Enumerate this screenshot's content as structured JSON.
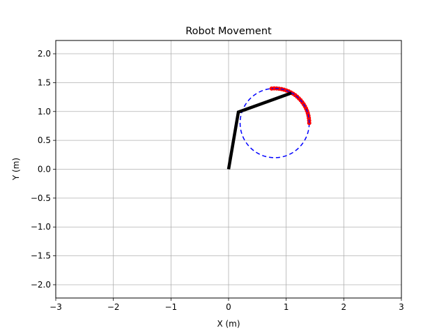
{
  "chart_data": {
    "type": "line",
    "title": "Robot Movement",
    "xlabel": "X (m)",
    "ylabel": "Y (m)",
    "xlim": [
      -3,
      3
    ],
    "ylim": [
      -2.23,
      2.23
    ],
    "xticks": [
      -3,
      -2,
      -1,
      0,
      1,
      2,
      3
    ],
    "yticks": [
      -2.0,
      -1.5,
      -1.0,
      -0.5,
      0.0,
      0.5,
      1.0,
      1.5,
      2.0
    ],
    "xtick_labels": [
      "−3",
      "−2",
      "−1",
      "0",
      "1",
      "2",
      "3"
    ],
    "ytick_labels": [
      "−2.0",
      "−1.5",
      "−1.0",
      "−0.5",
      "0.0",
      "0.5",
      "1.0",
      "1.5",
      "2.0"
    ],
    "grid": true,
    "target_circle": {
      "center": [
        0.8,
        0.8
      ],
      "radius": 0.6,
      "color": "#0000ff",
      "style": "dashed"
    },
    "arm": {
      "points": [
        [
          0.0,
          0.0
        ],
        [
          0.17,
          0.99
        ],
        [
          1.09,
          1.32
        ]
      ],
      "color": "#000000"
    },
    "trajectory": {
      "angle_start_deg": 0,
      "angle_end_deg": 95,
      "point_count": 24,
      "point_color": "#ff0000",
      "line_color": "#0000ff"
    }
  }
}
